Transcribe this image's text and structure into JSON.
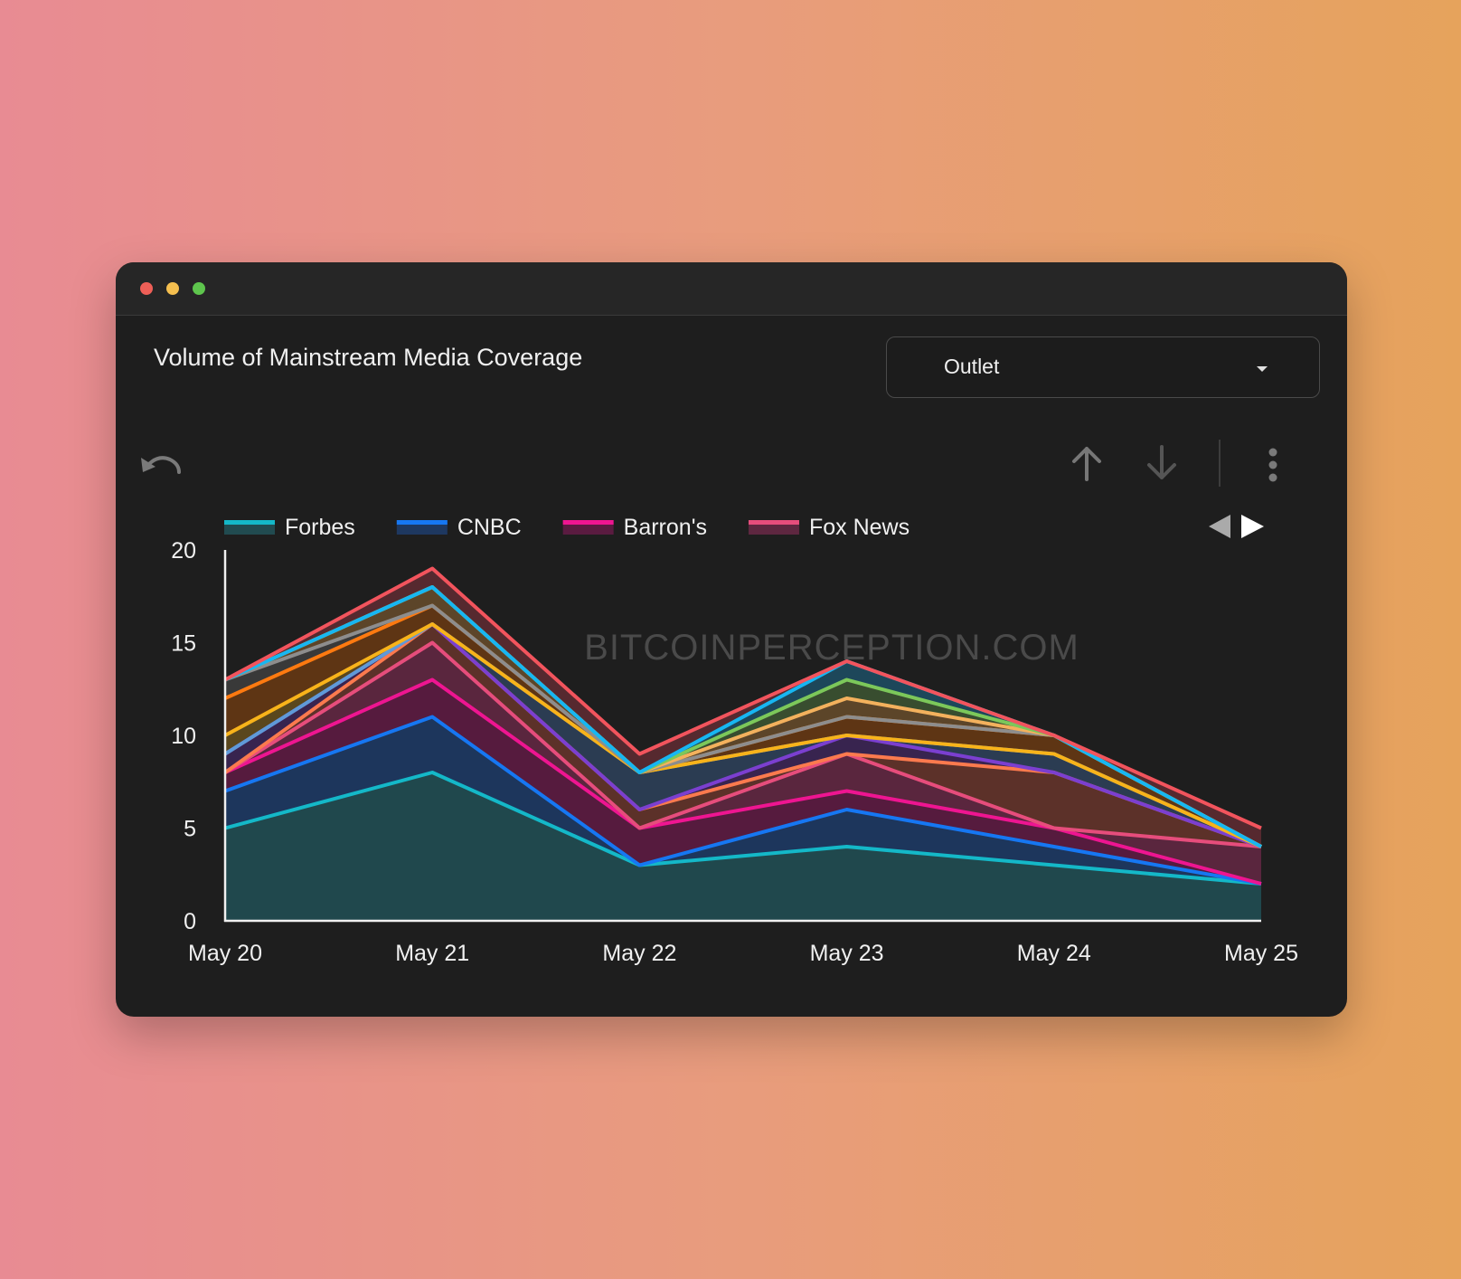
{
  "window": {
    "controls": [
      "close",
      "minimize",
      "maximize"
    ]
  },
  "header": {
    "title": "Volume of Mainstream Media Coverage"
  },
  "filter": {
    "selected": "Outlet"
  },
  "toolbar": {
    "icons": [
      "undo-icon",
      "arrow-up-icon",
      "arrow-down-icon",
      "more-vertical-icon"
    ]
  },
  "legend_nav": {
    "icons": [
      "prev-page-icon",
      "next-page-icon"
    ]
  },
  "watermark": "BITCOINPERCEPTION.COM",
  "chart_data": {
    "type": "area",
    "stacked": true,
    "title": "Volume of Mainstream Media Coverage",
    "x": [
      "May 20",
      "May 21",
      "May 22",
      "May 23",
      "May 24",
      "May 25"
    ],
    "ylim": [
      0,
      20
    ],
    "yticks": [
      0,
      5,
      10,
      15,
      20
    ],
    "legend_position": "top-left",
    "legend_visible": [
      "Forbes",
      "CNBC",
      "Barron's",
      "Fox News"
    ],
    "series": [
      {
        "name": "Forbes",
        "color": "#14b8c8",
        "fill": "#214b50",
        "values": [
          5,
          8,
          3,
          4,
          3,
          2
        ]
      },
      {
        "name": "CNBC",
        "color": "#1677f2",
        "fill": "#1e3860",
        "values": [
          2,
          3,
          0,
          2,
          1,
          0
        ]
      },
      {
        "name": "Barron's",
        "color": "#ee1591",
        "fill": "#5a1b40",
        "values": [
          1,
          2,
          2,
          1,
          1,
          0
        ]
      },
      {
        "name": "Fox News",
        "color": "#e64d7c",
        "fill": "#5e2740",
        "values": [
          0,
          2,
          0,
          2,
          0,
          2
        ]
      },
      {
        "color": "#fb7a4e",
        "fill": "#60332a",
        "values": [
          0,
          1,
          1,
          0,
          3,
          0
        ]
      },
      {
        "color": "#7b3fd0",
        "fill": "#3a2552",
        "values": [
          1,
          0,
          0,
          1,
          0,
          0
        ]
      },
      {
        "color": "#5f9ad8",
        "fill": "#2c3e55",
        "values": [
          0,
          0,
          2,
          0,
          1,
          0
        ]
      },
      {
        "color": "#f8b31a",
        "fill": "#5e4a1e",
        "values": [
          1,
          0,
          0,
          0,
          0,
          0
        ]
      },
      {
        "color": "#ff7a10",
        "fill": "#623714",
        "values": [
          2,
          1,
          0,
          1,
          1,
          0
        ]
      },
      {
        "color": "#8d8d8d",
        "fill": "#3b3b3b",
        "values": [
          1,
          0,
          0,
          0,
          0,
          0
        ]
      },
      {
        "color": "#f3b15d",
        "fill": "#60482a",
        "values": [
          0,
          1,
          0,
          1,
          0,
          0
        ]
      },
      {
        "color": "#7cc85a",
        "fill": "#3a5030",
        "values": [
          0,
          0,
          0,
          1,
          0,
          0
        ]
      },
      {
        "color": "#17b6f2",
        "fill": "#1e4a5e",
        "values": [
          0,
          0,
          0,
          1,
          0,
          0
        ]
      },
      {
        "color": "#f2545d",
        "fill": "#5a2a30",
        "values": [
          0,
          1,
          1,
          0,
          0,
          1
        ]
      }
    ]
  }
}
